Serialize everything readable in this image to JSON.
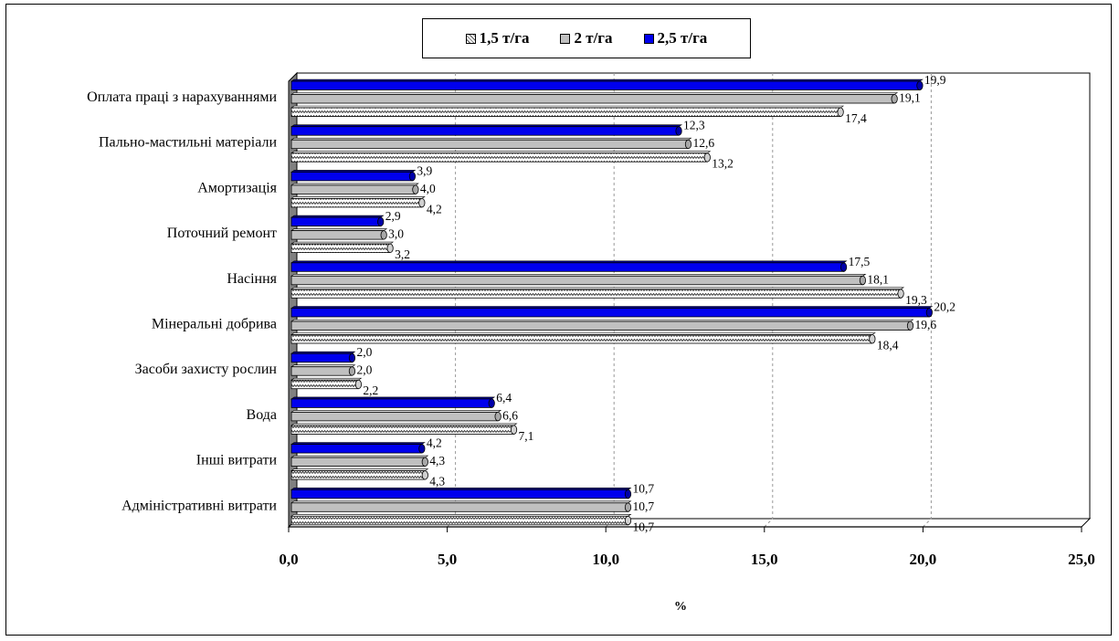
{
  "chart_data": {
    "type": "bar",
    "orientation": "horizontal",
    "categories": [
      "Оплата праці з нарахуваннями",
      "Пально-мастильні матеріали",
      "Амортизація",
      "Поточний ремонт",
      "Насіння",
      "Мінеральні добрива",
      "Засоби захисту рослин",
      "Вода",
      "Інші витрати",
      "Адміністративні витрати"
    ],
    "series": [
      {
        "name": "1,5 т/га",
        "values": [
          17.4,
          13.2,
          4.2,
          3.2,
          19.3,
          18.4,
          2.2,
          7.1,
          4.3,
          10.7
        ],
        "labels": [
          "17,4",
          "13,2",
          "4,2",
          "3,2",
          "19,3",
          "18,4",
          "2,2",
          "7,1",
          "4,3",
          "10,7"
        ],
        "color": "#ffffff",
        "pattern": "hatched"
      },
      {
        "name": "2 т/га",
        "values": [
          19.1,
          12.6,
          4.0,
          3.0,
          18.1,
          19.6,
          2.0,
          6.6,
          4.3,
          10.7
        ],
        "labels": [
          "19,1",
          "12,6",
          "4,0",
          "3,0",
          "18,1",
          "19,6",
          "2,0",
          "6,6",
          "4,3",
          "10,7"
        ],
        "color": "#c0c0c0"
      },
      {
        "name": "2,5 т/га",
        "values": [
          19.9,
          12.3,
          3.9,
          2.9,
          17.5,
          20.2,
          2.0,
          6.4,
          4.2,
          10.7
        ],
        "labels": [
          "19,9",
          "12,3",
          "3,9",
          "2,9",
          "17,5",
          "20,2",
          "2,0",
          "6,4",
          "4,2",
          "10,7"
        ],
        "color": "#0000ee"
      }
    ],
    "xlabel": "%",
    "ylabel": "",
    "xlim": [
      0,
      25
    ],
    "xticks": [
      "0,0",
      "5,0",
      "10,0",
      "15,0",
      "20,0",
      "25,0"
    ],
    "grid": "vertical dashed",
    "legend_position": "top"
  }
}
